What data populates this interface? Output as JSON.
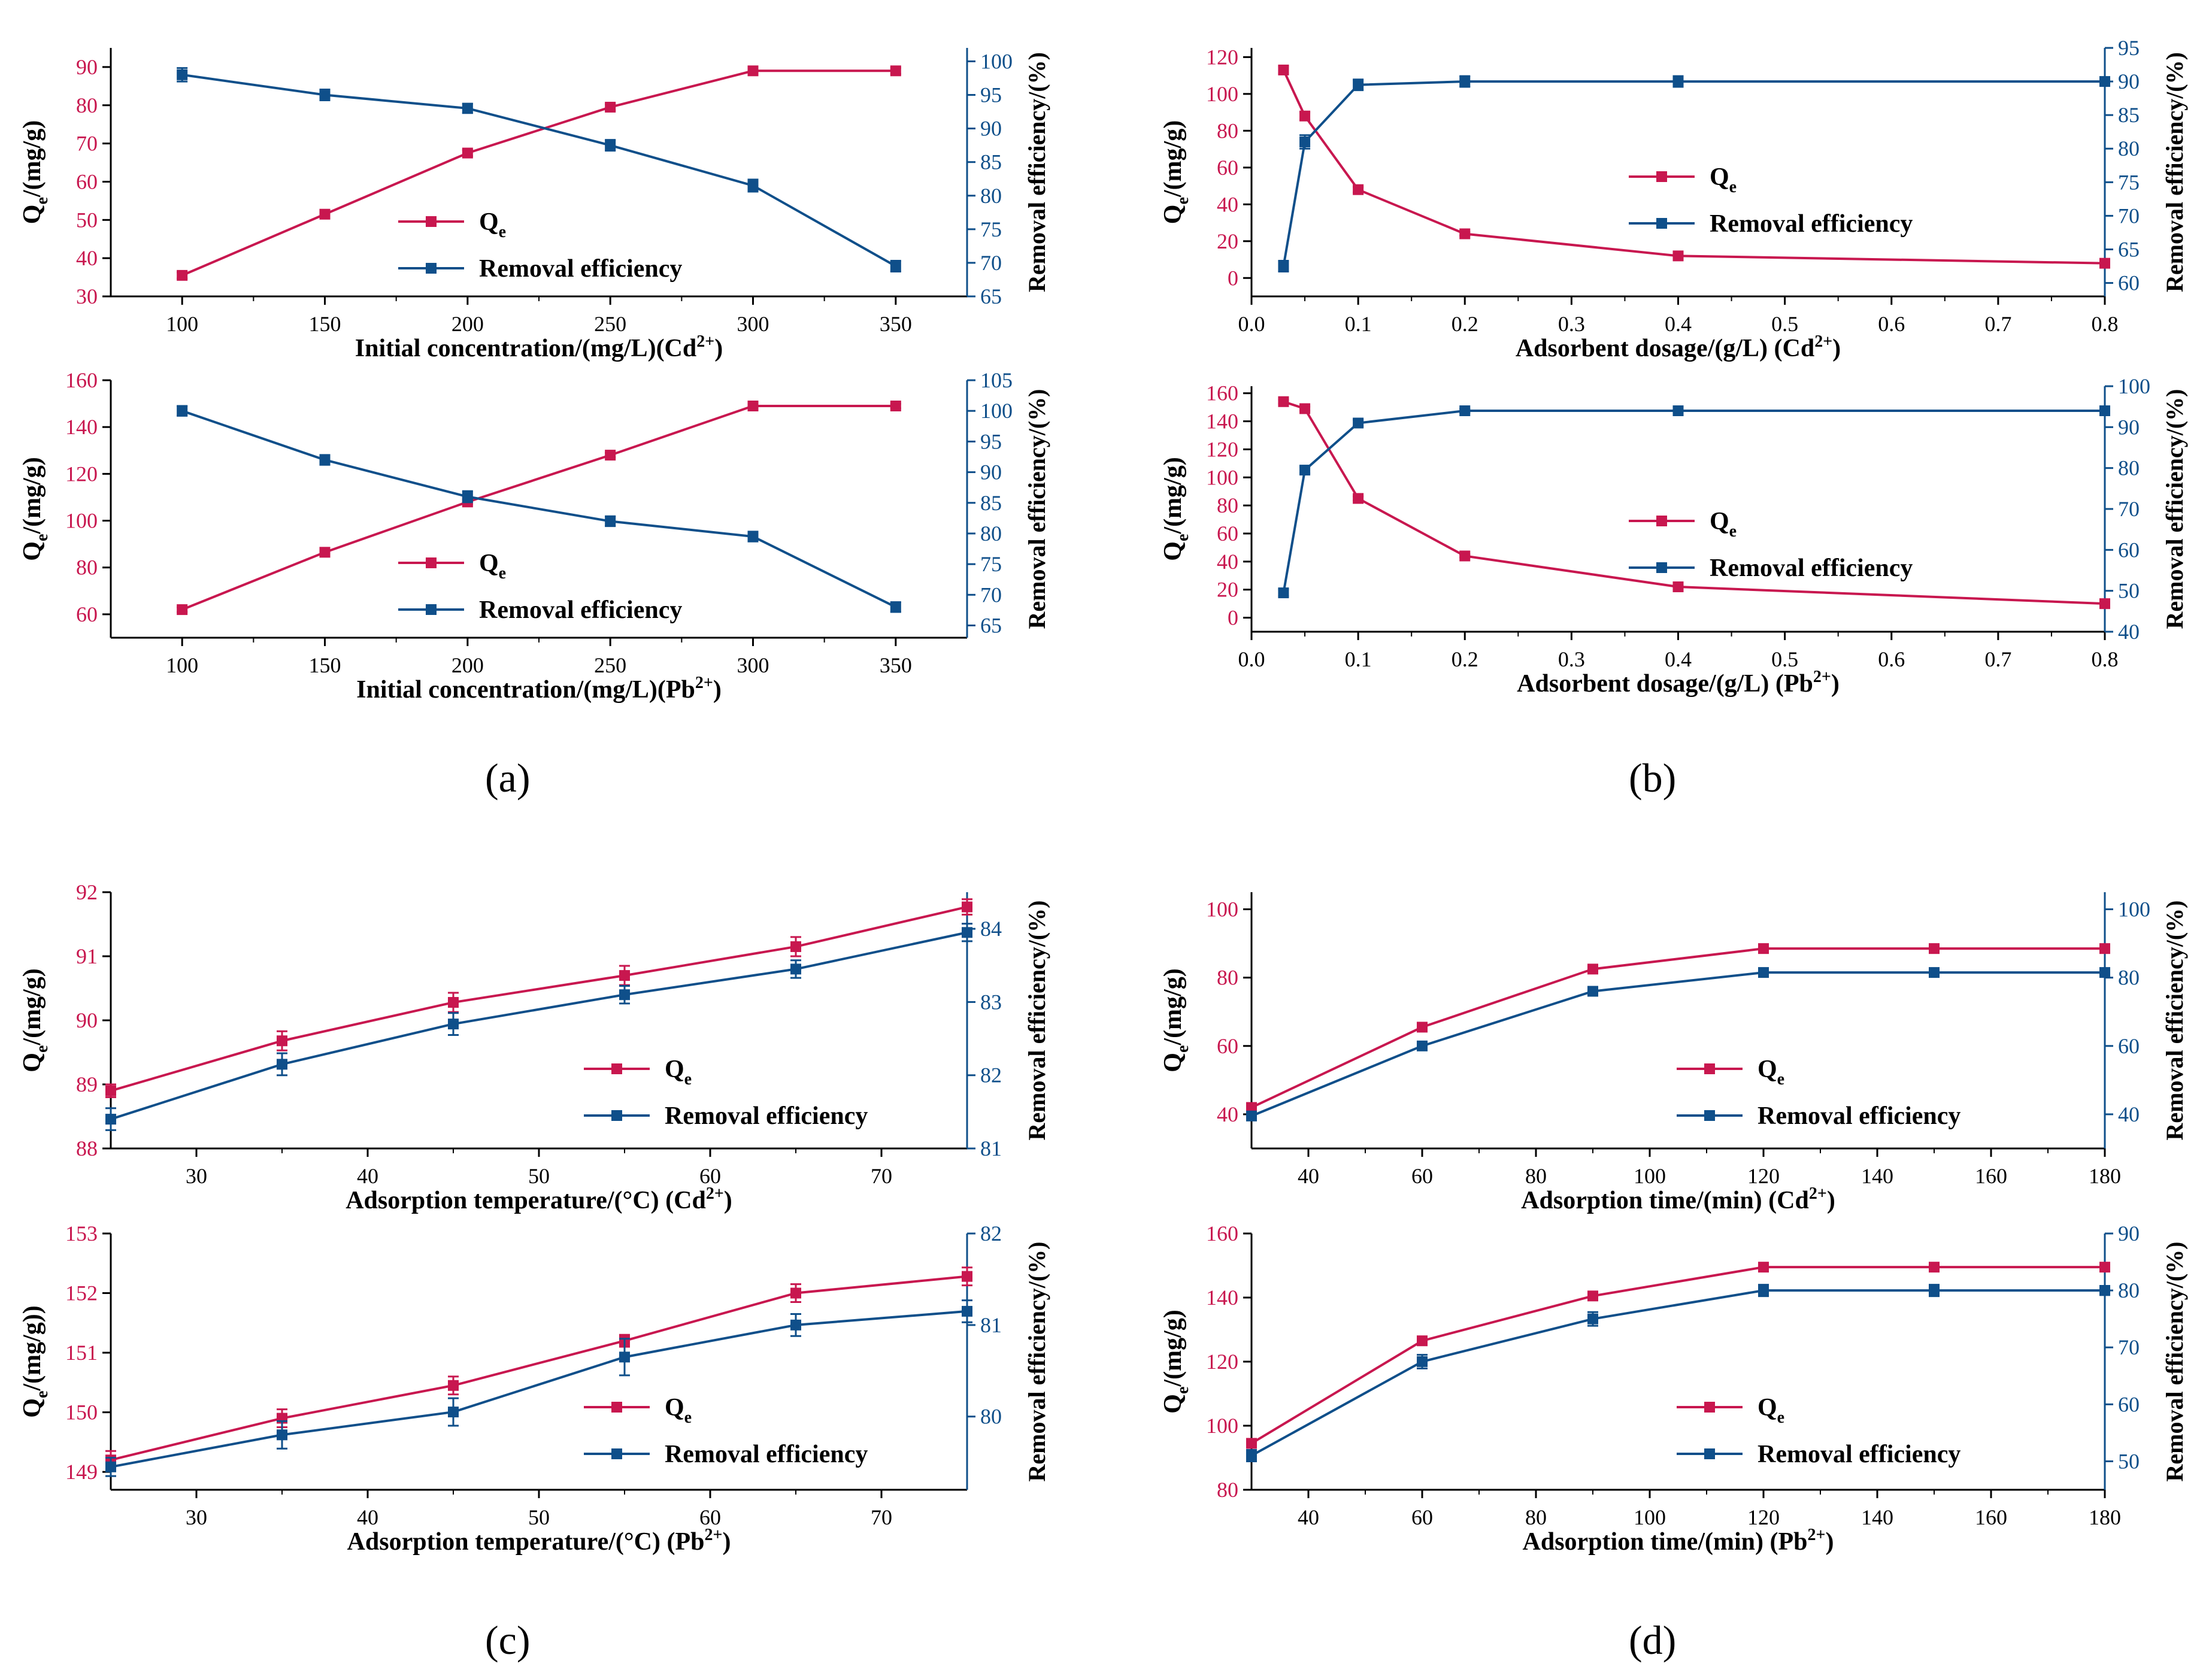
{
  "colors": {
    "qe": "#c8174f",
    "re": "#0f4f8a",
    "axis": "#000000"
  },
  "panels": [
    {
      "id": "a",
      "label": "(a)"
    },
    {
      "id": "b",
      "label": "(b)"
    },
    {
      "id": "c",
      "label": "(c)"
    },
    {
      "id": "d",
      "label": "(d)"
    }
  ],
  "chart_data": [
    {
      "id": "a1",
      "panel": "a",
      "type": "line",
      "xlabel": "Initial concentration/(mg/L)(Cd",
      "xion": "2+",
      "xsuffix": ")",
      "xlim": [
        75,
        375
      ],
      "xticks": [
        100,
        150,
        200,
        250,
        300,
        350
      ],
      "ylim_left": [
        30,
        95
      ],
      "yticks_left": [
        30,
        40,
        50,
        60,
        70,
        80,
        90
      ],
      "ylim_right": [
        65,
        102
      ],
      "yticks_right": [
        65,
        70,
        75,
        80,
        85,
        90,
        95,
        100
      ],
      "ylabel_left": "Q",
      "ylabel_left_sub": "e",
      "ylabel_left_rest": "/(mg/g)",
      "ylabel_right": "Removal efficiency/(%)",
      "legend": {
        "qe": "Q",
        "qe_sub": "e",
        "re": "Removal efficiency"
      },
      "x": [
        100,
        150,
        200,
        250,
        300,
        350
      ],
      "series": [
        {
          "name": "Qe",
          "axis": "left",
          "values": [
            35.5,
            51.5,
            67.5,
            79.5,
            89,
            89
          ],
          "err": [
            0.8,
            0.8,
            0.8,
            0.8,
            0.8,
            0.8
          ]
        },
        {
          "name": "Removal efficiency",
          "axis": "right",
          "values": [
            98,
            95,
            93,
            87.5,
            81.5,
            69.5
          ],
          "err": [
            1,
            0.8,
            0.7,
            0.8,
            0.9,
            0.8
          ]
        }
      ]
    },
    {
      "id": "a2",
      "panel": "a",
      "type": "line",
      "xlabel": "Initial concentration/(mg/L)(Pb",
      "xion": "2+",
      "xsuffix": ")",
      "xlim": [
        75,
        375
      ],
      "xticks": [
        100,
        150,
        200,
        250,
        300,
        350
      ],
      "ylim_left": [
        50,
        160
      ],
      "yticks_left": [
        60,
        80,
        100,
        120,
        140,
        160
      ],
      "ylim_right": [
        63,
        105
      ],
      "yticks_right": [
        65,
        70,
        75,
        80,
        85,
        90,
        95,
        100,
        105
      ],
      "ylabel_left": "Q",
      "ylabel_left_sub": "e",
      "ylabel_left_rest": "/(mg/g)",
      "ylabel_right": "Removal efficiency/(%)",
      "legend": {
        "qe": "Q",
        "qe_sub": "e",
        "re": "Removal efficiency"
      },
      "x": [
        100,
        150,
        200,
        250,
        300,
        350
      ],
      "series": [
        {
          "name": "Qe",
          "axis": "left",
          "values": [
            62,
            86.5,
            108,
            128,
            149,
            149
          ],
          "err": [
            1,
            1,
            1,
            1,
            1,
            1
          ]
        },
        {
          "name": "Removal efficiency",
          "axis": "right",
          "values": [
            100,
            92,
            86,
            82,
            79.5,
            68
          ],
          "err": [
            0.8,
            0.8,
            0.9,
            0.8,
            0.8,
            0.8
          ]
        }
      ]
    },
    {
      "id": "b1",
      "panel": "b",
      "type": "line",
      "xlabel": "Adsorbent dosage/(g/L) (Cd",
      "xion": "2+",
      "xsuffix": ")",
      "xlim": [
        0,
        0.8
      ],
      "xticks": [
        0,
        0.1,
        0.2,
        0.3,
        0.4,
        0.5,
        0.6,
        0.7,
        0.8
      ],
      "ylim_left": [
        -10,
        125
      ],
      "yticks_left": [
        0,
        20,
        40,
        60,
        80,
        100,
        120
      ],
      "ylim_right": [
        58,
        95
      ],
      "yticks_right": [
        60,
        65,
        70,
        75,
        80,
        85,
        90,
        95
      ],
      "ylabel_left": "Q",
      "ylabel_left_sub": "e",
      "ylabel_left_rest": "/(mg/g)",
      "ylabel_right": "Removal efficiency/(%)",
      "legend": {
        "qe": "Q",
        "qe_sub": "e",
        "re": "Removal efficiency"
      },
      "x": [
        0.03,
        0.05,
        0.1,
        0.2,
        0.4,
        0.8
      ],
      "series": [
        {
          "name": "Qe",
          "axis": "left",
          "values": [
            113,
            88,
            48,
            24,
            12,
            8
          ],
          "err": [
            2,
            2,
            1.5,
            1,
            1,
            0.5
          ]
        },
        {
          "name": "Removal efficiency",
          "axis": "right",
          "values": [
            62.5,
            81,
            89.5,
            90,
            90,
            90
          ],
          "err": [
            0.8,
            1,
            0.8,
            0.8,
            0.8,
            0.5
          ]
        }
      ]
    },
    {
      "id": "b2",
      "panel": "b",
      "type": "line",
      "xlabel": "Adsorbent dosage/(g/L) (Pb",
      "xion": "2+",
      "xsuffix": ")",
      "xlim": [
        0,
        0.8
      ],
      "xticks": [
        0,
        0.1,
        0.2,
        0.3,
        0.4,
        0.5,
        0.6,
        0.7,
        0.8
      ],
      "ylim_left": [
        -10,
        165
      ],
      "yticks_left": [
        0,
        20,
        40,
        60,
        80,
        100,
        120,
        140,
        160
      ],
      "ylim_right": [
        40,
        100
      ],
      "yticks_right": [
        40,
        50,
        60,
        70,
        80,
        90,
        100
      ],
      "ylabel_left": "Q",
      "ylabel_left_sub": "e",
      "ylabel_left_rest": "/(mg/g)",
      "ylabel_right": "Removal efficiency/(%)",
      "legend": {
        "qe": "Q",
        "qe_sub": "e",
        "re": "Removal efficiency"
      },
      "x": [
        0.03,
        0.05,
        0.1,
        0.2,
        0.4,
        0.8
      ],
      "series": [
        {
          "name": "Qe",
          "axis": "left",
          "values": [
            154,
            149,
            85,
            44,
            22,
            10
          ],
          "err": [
            1.5,
            1.5,
            1.5,
            1,
            1,
            0.5
          ]
        },
        {
          "name": "Removal efficiency",
          "axis": "right",
          "values": [
            49.5,
            79.5,
            91,
            94,
            94,
            94
          ],
          "err": [
            0.8,
            0.8,
            0.8,
            0.5,
            0.5,
            0.5
          ]
        }
      ]
    },
    {
      "id": "c1",
      "panel": "c",
      "type": "line",
      "xlabel": "Adsorption temperature/(°C) (Cd",
      "xion": "2+",
      "xsuffix": ")",
      "xlim": [
        25,
        75
      ],
      "xticks": [
        30,
        40,
        50,
        60,
        70
      ],
      "ylim_left": [
        88,
        92
      ],
      "yticks_left": [
        88,
        89,
        90,
        91,
        92
      ],
      "ylim_right": [
        81,
        84.5
      ],
      "yticks_right": [
        81,
        82,
        83,
        84
      ],
      "ylabel_left": "Q",
      "ylabel_left_sub": "e",
      "ylabel_left_rest": "/(mg/g)",
      "ylabel_right": "Removal efficiency/(%)",
      "legend": {
        "qe": "Q",
        "qe_sub": "e",
        "re": "Removal efficiency"
      },
      "x": [
        25,
        35,
        45,
        55,
        65,
        75
      ],
      "series": [
        {
          "name": "Qe",
          "axis": "left",
          "values": [
            88.9,
            89.68,
            90.28,
            90.7,
            91.15,
            91.77
          ],
          "err": [
            0.1,
            0.15,
            0.15,
            0.15,
            0.15,
            0.12
          ]
        },
        {
          "name": "Removal efficiency",
          "axis": "right",
          "values": [
            81.4,
            82.15,
            82.7,
            83.1,
            83.45,
            83.95
          ],
          "err": [
            0.15,
            0.15,
            0.15,
            0.12,
            0.12,
            0.12
          ]
        }
      ]
    },
    {
      "id": "c2",
      "panel": "c",
      "type": "line",
      "xlabel": "Adsorption temperature/(°C) (Pb",
      "xion": "2+",
      "xsuffix": ")",
      "xlim": [
        25,
        75
      ],
      "xticks": [
        30,
        40,
        50,
        60,
        70
      ],
      "ylim_left": [
        148.7,
        153
      ],
      "yticks_left": [
        149,
        150,
        151,
        152,
        153
      ],
      "ylim_right": [
        79.2,
        82
      ],
      "yticks_right": [
        80,
        81,
        82
      ],
      "ylabel_left": "Q",
      "ylabel_left_sub": "e",
      "ylabel_left_rest": "/(mg/g))",
      "ylabel_right": "Removal efficiency/(%)",
      "legend": {
        "qe": "Q",
        "qe_sub": "e",
        "re": "Removal efficiency"
      },
      "x": [
        25,
        35,
        45,
        55,
        65,
        75
      ],
      "series": [
        {
          "name": "Qe",
          "axis": "left",
          "values": [
            149.2,
            149.9,
            150.45,
            151.2,
            152.0,
            152.28
          ],
          "err": [
            0.15,
            0.15,
            0.15,
            0.1,
            0.15,
            0.15
          ]
        },
        {
          "name": "Removal efficiency",
          "axis": "right",
          "values": [
            79.45,
            79.8,
            80.05,
            80.65,
            81.0,
            81.15
          ],
          "err": [
            0.1,
            0.15,
            0.15,
            0.2,
            0.12,
            0.12
          ]
        }
      ]
    },
    {
      "id": "d1",
      "panel": "d",
      "type": "line",
      "xlabel": "Adsorption time/(min) (Cd",
      "xion": "2+",
      "xsuffix": ")",
      "xlim": [
        30,
        180
      ],
      "xticks": [
        40,
        60,
        80,
        100,
        120,
        140,
        160,
        180
      ],
      "ylim_left": [
        30,
        105
      ],
      "yticks_left": [
        40,
        60,
        80,
        100
      ],
      "ylim_right": [
        30,
        105
      ],
      "yticks_right": [
        40,
        60,
        80,
        100
      ],
      "ylabel_left": "Q",
      "ylabel_left_sub": "e",
      "ylabel_left_rest": "/(mg/g)",
      "ylabel_right": "Removal efficiency/(%)",
      "legend": {
        "qe": "Q",
        "qe_sub": "e",
        "re": "Removal efficiency"
      },
      "x": [
        30,
        60,
        90,
        120,
        150,
        180
      ],
      "series": [
        {
          "name": "Qe",
          "axis": "left",
          "values": [
            42,
            65.5,
            82.5,
            88.5,
            88.5,
            88.5
          ],
          "err": [
            0.8,
            0.8,
            0.8,
            0.8,
            0.8,
            0.8
          ]
        },
        {
          "name": "Removal efficiency",
          "axis": "right",
          "values": [
            39.5,
            60,
            76,
            81.5,
            81.5,
            81.5
          ],
          "err": [
            0.8,
            0.8,
            0.8,
            0.8,
            0.8,
            0.8
          ]
        }
      ]
    },
    {
      "id": "d2",
      "panel": "d",
      "type": "line",
      "xlabel": "Adsorption time/(min) (Pb",
      "xion": "2+",
      "xsuffix": ")",
      "xlim": [
        30,
        180
      ],
      "xticks": [
        40,
        60,
        80,
        100,
        120,
        140,
        160,
        180
      ],
      "ylim_left": [
        80,
        160
      ],
      "yticks_left": [
        80,
        100,
        120,
        140,
        160
      ],
      "ylim_right": [
        45,
        90
      ],
      "yticks_right": [
        50,
        60,
        70,
        80,
        90
      ],
      "ylabel_left": "Q",
      "ylabel_left_sub": "e",
      "ylabel_left_rest": "/(mg/g)",
      "ylabel_right": "Removal efficiency/(%)",
      "legend": {
        "qe": "Q",
        "qe_sub": "e",
        "re": "Removal efficiency"
      },
      "x": [
        30,
        60,
        90,
        120,
        150,
        180
      ],
      "series": [
        {
          "name": "Qe",
          "axis": "left",
          "values": [
            94.5,
            126.5,
            140.5,
            149.5,
            149.5,
            149.5
          ],
          "err": [
            1,
            1,
            1,
            1,
            1,
            1
          ]
        },
        {
          "name": "Removal efficiency",
          "axis": "right",
          "values": [
            51,
            67.5,
            75,
            80,
            80,
            80
          ],
          "err": [
            1,
            1.2,
            1.2,
            1,
            1,
            0.8
          ]
        }
      ]
    }
  ]
}
